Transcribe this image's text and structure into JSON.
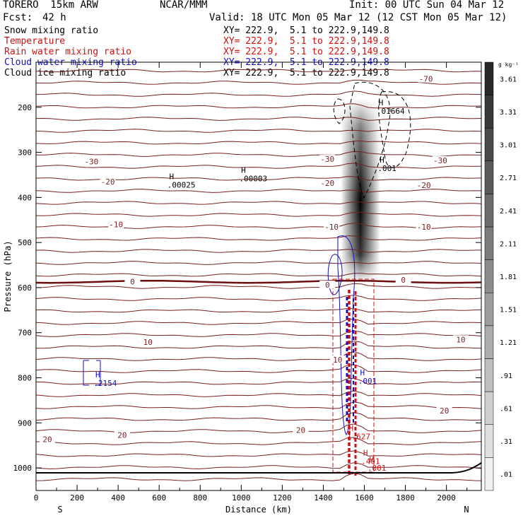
{
  "header": {
    "model": "TORERO  15km ARW",
    "center": "NCAR/MMM",
    "init": "Init: 00 UTC Sun 04 Mar 12",
    "fcst_label": "Fcst:",
    "fcst_value": "42 h",
    "valid": "Valid: 18 UTC Mon 05 Mar 12 (12 CST Mon 05 Mar 12)"
  },
  "fields": [
    {
      "name": "Snow mixing ratio",
      "xy": "XY= 222.9,  5.1 to 222.9,149.8",
      "color": "#000000"
    },
    {
      "name": "Temperature",
      "xy": "XY= 222.9,  5.1 to 222.9,149.8",
      "color": "#d01010"
    },
    {
      "name": "Rain water mixing ratio",
      "xy": "XY= 222.9,  5.1 to 222.9,149.8",
      "color": "#d01010"
    },
    {
      "name": "Cloud water mixing ratio",
      "xy": "XY= 222.9,  5.1 to 222.9,149.8",
      "color": "#1010c0"
    },
    {
      "name": "Cloud ice mixing ratio",
      "xy": "XY= 222.9,  5.1 to 222.9,149.8",
      "color": "#000000"
    }
  ],
  "chart_data": {
    "type": "vertical-cross-section",
    "xlabel": "Distance (km)",
    "ylabel": "Pressure (hPa)",
    "xlim": [
      0,
      2170
    ],
    "ylim": [
      1050,
      100
    ],
    "x_ticks": [
      "0",
      "200",
      "400",
      "600",
      "800",
      "1000",
      "1200",
      "1400",
      "1600",
      "1800",
      "2000"
    ],
    "y_ticks": [
      "200",
      "300",
      "400",
      "500",
      "600",
      "700",
      "800",
      "900",
      "1000"
    ],
    "end_labels": {
      "left": "S",
      "right": "N"
    },
    "temperature_contour_labels": [
      {
        "text": "-70",
        "x": 1900,
        "p": 137
      },
      {
        "text": "-30",
        "x": 270,
        "p": 320
      },
      {
        "text": "-30",
        "x": 1420,
        "p": 315
      },
      {
        "text": "-30",
        "x": 1970,
        "p": 318
      },
      {
        "text": "-20",
        "x": 350,
        "p": 365
      },
      {
        "text": "-20",
        "x": 1420,
        "p": 368
      },
      {
        "text": "-20",
        "x": 1890,
        "p": 373
      },
      {
        "text": "-10",
        "x": 390,
        "p": 460
      },
      {
        "text": "-10",
        "x": 1440,
        "p": 465
      },
      {
        "text": "-10",
        "x": 1890,
        "p": 465
      },
      {
        "text": "0",
        "x": 470,
        "p": 587
      },
      {
        "text": "0",
        "x": 1420,
        "p": 594
      },
      {
        "text": "0",
        "x": 1790,
        "p": 583
      },
      {
        "text": "10",
        "x": 545,
        "p": 721
      },
      {
        "text": "10",
        "x": 1470,
        "p": 760
      },
      {
        "text": "10",
        "x": 2070,
        "p": 715
      },
      {
        "text": "20",
        "x": 55,
        "p": 936
      },
      {
        "text": "20",
        "x": 420,
        "p": 927
      },
      {
        "text": "20",
        "x": 1290,
        "p": 916
      },
      {
        "text": "20",
        "x": 1990,
        "p": 873
      }
    ],
    "maxima": [
      {
        "text": ".00025",
        "x": 640,
        "p": 372,
        "color": "#000000"
      },
      {
        "text": ".00003",
        "x": 990,
        "p": 358,
        "color": "#000000"
      },
      {
        "text": ".01664",
        "x": 1660,
        "p": 208,
        "color": "#000000"
      },
      {
        "text": ".001",
        "x": 1665,
        "p": 335,
        "color": "#000000"
      },
      {
        "text": ".2154",
        "x": 280,
        "p": 812,
        "color": "#1010c0"
      },
      {
        "text": ".001",
        "x": 1570,
        "p": 807,
        "color": "#1010c0"
      },
      {
        "text": ".001",
        "x": 1615,
        "p": 1000,
        "color": "#d01010"
      },
      {
        "text": "1.627",
        "x": 1515,
        "p": 930,
        "color": "#d01010"
      },
      {
        "text": ".401",
        "x": 1585,
        "p": 985,
        "color": "#d01010"
      }
    ],
    "snow_colorbar": {
      "unit": "g kg⁻¹",
      "labels": [
        "3.61",
        "3.31",
        "3.01",
        "2.71",
        "2.41",
        "2.11",
        "1.81",
        "1.51",
        "1.21",
        ".91",
        ".61",
        ".31",
        ".01"
      ]
    }
  }
}
